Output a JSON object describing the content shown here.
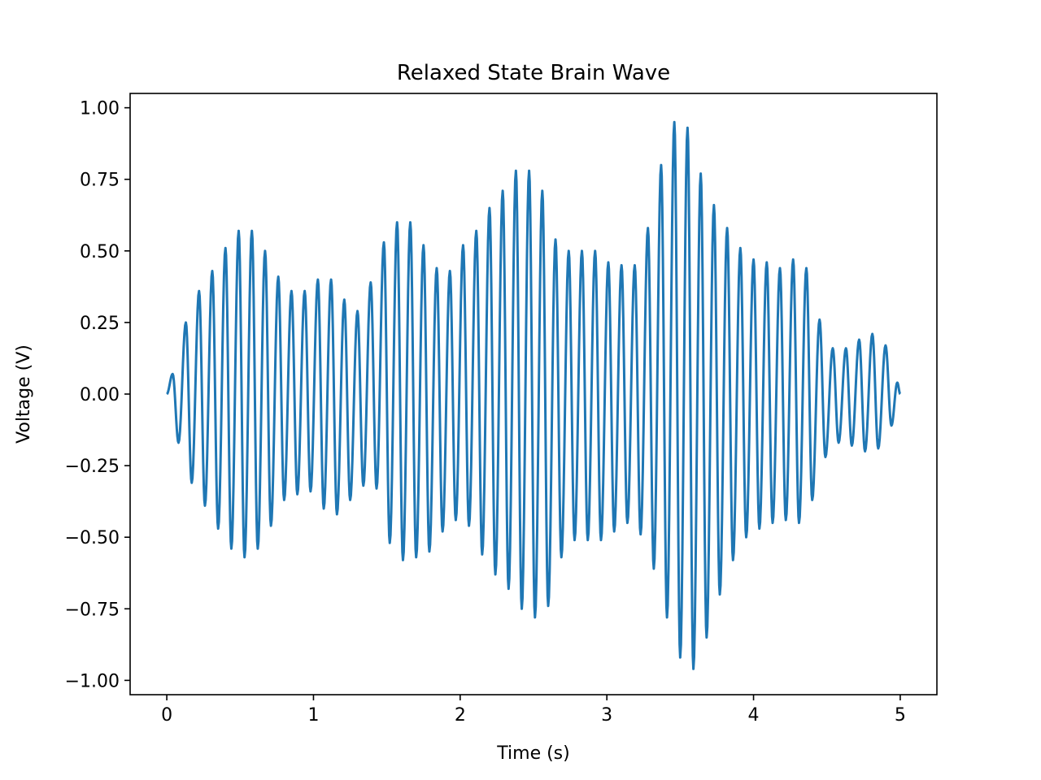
{
  "chart_data": {
    "type": "line",
    "title": "Relaxed State Brain Wave",
    "xlabel": "Time (s)",
    "ylabel": "Voltage (V)",
    "xlim": [
      -0.25,
      5.25
    ],
    "ylim": [
      -1.05,
      1.05
    ],
    "x_ticks": [
      0,
      1,
      2,
      3,
      4,
      5
    ],
    "x_tick_labels": [
      "0",
      "1",
      "2",
      "3",
      "4",
      "5"
    ],
    "y_ticks": [
      1.0,
      0.75,
      0.5,
      0.25,
      0.0,
      -0.25,
      -0.5,
      -0.75,
      -1.0
    ],
    "y_tick_labels": [
      "1.00",
      "0.75",
      "0.50",
      "0.25",
      "0.00",
      "−0.25",
      "−0.50",
      "−0.75",
      "−1.00"
    ],
    "grid": false,
    "series": [
      {
        "color": "#1f77b4",
        "carrier_frequency_hz": 10,
        "x_range": [
          0,
          5
        ],
        "peak_times": [
          0.04,
          0.13,
          0.22,
          0.31,
          0.4,
          0.49,
          0.58,
          0.67,
          0.76,
          0.85,
          0.94,
          1.03,
          1.12,
          1.21,
          1.3,
          1.39,
          1.48,
          1.57,
          1.66,
          1.75,
          1.84,
          1.93,
          2.02,
          2.11,
          2.2,
          2.29,
          2.38,
          2.47,
          2.56,
          2.65,
          2.74,
          2.83,
          2.92,
          3.01,
          3.1,
          3.19,
          3.28,
          3.37,
          3.46,
          3.55,
          3.64,
          3.73,
          3.82,
          3.91,
          4.0,
          4.09,
          4.18,
          4.27,
          4.36,
          4.45,
          4.54,
          4.63,
          4.72,
          4.81,
          4.9,
          4.98
        ],
        "peak_values": [
          0.07,
          0.25,
          0.36,
          0.43,
          0.51,
          0.57,
          0.57,
          0.5,
          0.41,
          0.36,
          0.36,
          0.4,
          0.4,
          0.33,
          0.29,
          0.39,
          0.53,
          0.6,
          0.6,
          0.52,
          0.44,
          0.43,
          0.52,
          0.57,
          0.65,
          0.71,
          0.78,
          0.78,
          0.71,
          0.54,
          0.5,
          0.5,
          0.5,
          0.46,
          0.45,
          0.45,
          0.58,
          0.8,
          0.95,
          0.93,
          0.77,
          0.66,
          0.58,
          0.51,
          0.47,
          0.46,
          0.44,
          0.47,
          0.44,
          0.26,
          0.16,
          0.16,
          0.19,
          0.21,
          0.17,
          0.04
        ],
        "trough_times": [
          0.08,
          0.17,
          0.26,
          0.35,
          0.44,
          0.53,
          0.62,
          0.71,
          0.8,
          0.89,
          0.98,
          1.07,
          1.16,
          1.25,
          1.34,
          1.43,
          1.52,
          1.61,
          1.7,
          1.79,
          1.88,
          1.97,
          2.06,
          2.15,
          2.24,
          2.33,
          2.42,
          2.51,
          2.6,
          2.69,
          2.78,
          2.87,
          2.96,
          3.05,
          3.14,
          3.23,
          3.32,
          3.41,
          3.5,
          3.59,
          3.68,
          3.77,
          3.86,
          3.95,
          4.04,
          4.13,
          4.22,
          4.31,
          4.4,
          4.49,
          4.58,
          4.67,
          4.76,
          4.85,
          4.94
        ],
        "trough_values": [
          -0.17,
          -0.31,
          -0.39,
          -0.47,
          -0.54,
          -0.57,
          -0.54,
          -0.46,
          -0.37,
          -0.35,
          -0.34,
          -0.4,
          -0.42,
          -0.37,
          -0.32,
          -0.33,
          -0.52,
          -0.58,
          -0.57,
          -0.55,
          -0.48,
          -0.44,
          -0.46,
          -0.56,
          -0.63,
          -0.68,
          -0.75,
          -0.78,
          -0.74,
          -0.57,
          -0.51,
          -0.51,
          -0.51,
          -0.48,
          -0.45,
          -0.49,
          -0.61,
          -0.78,
          -0.92,
          -0.96,
          -0.85,
          -0.7,
          -0.58,
          -0.5,
          -0.47,
          -0.45,
          -0.44,
          -0.45,
          -0.37,
          -0.22,
          -0.17,
          -0.18,
          -0.2,
          -0.19,
          -0.11
        ]
      }
    ]
  }
}
